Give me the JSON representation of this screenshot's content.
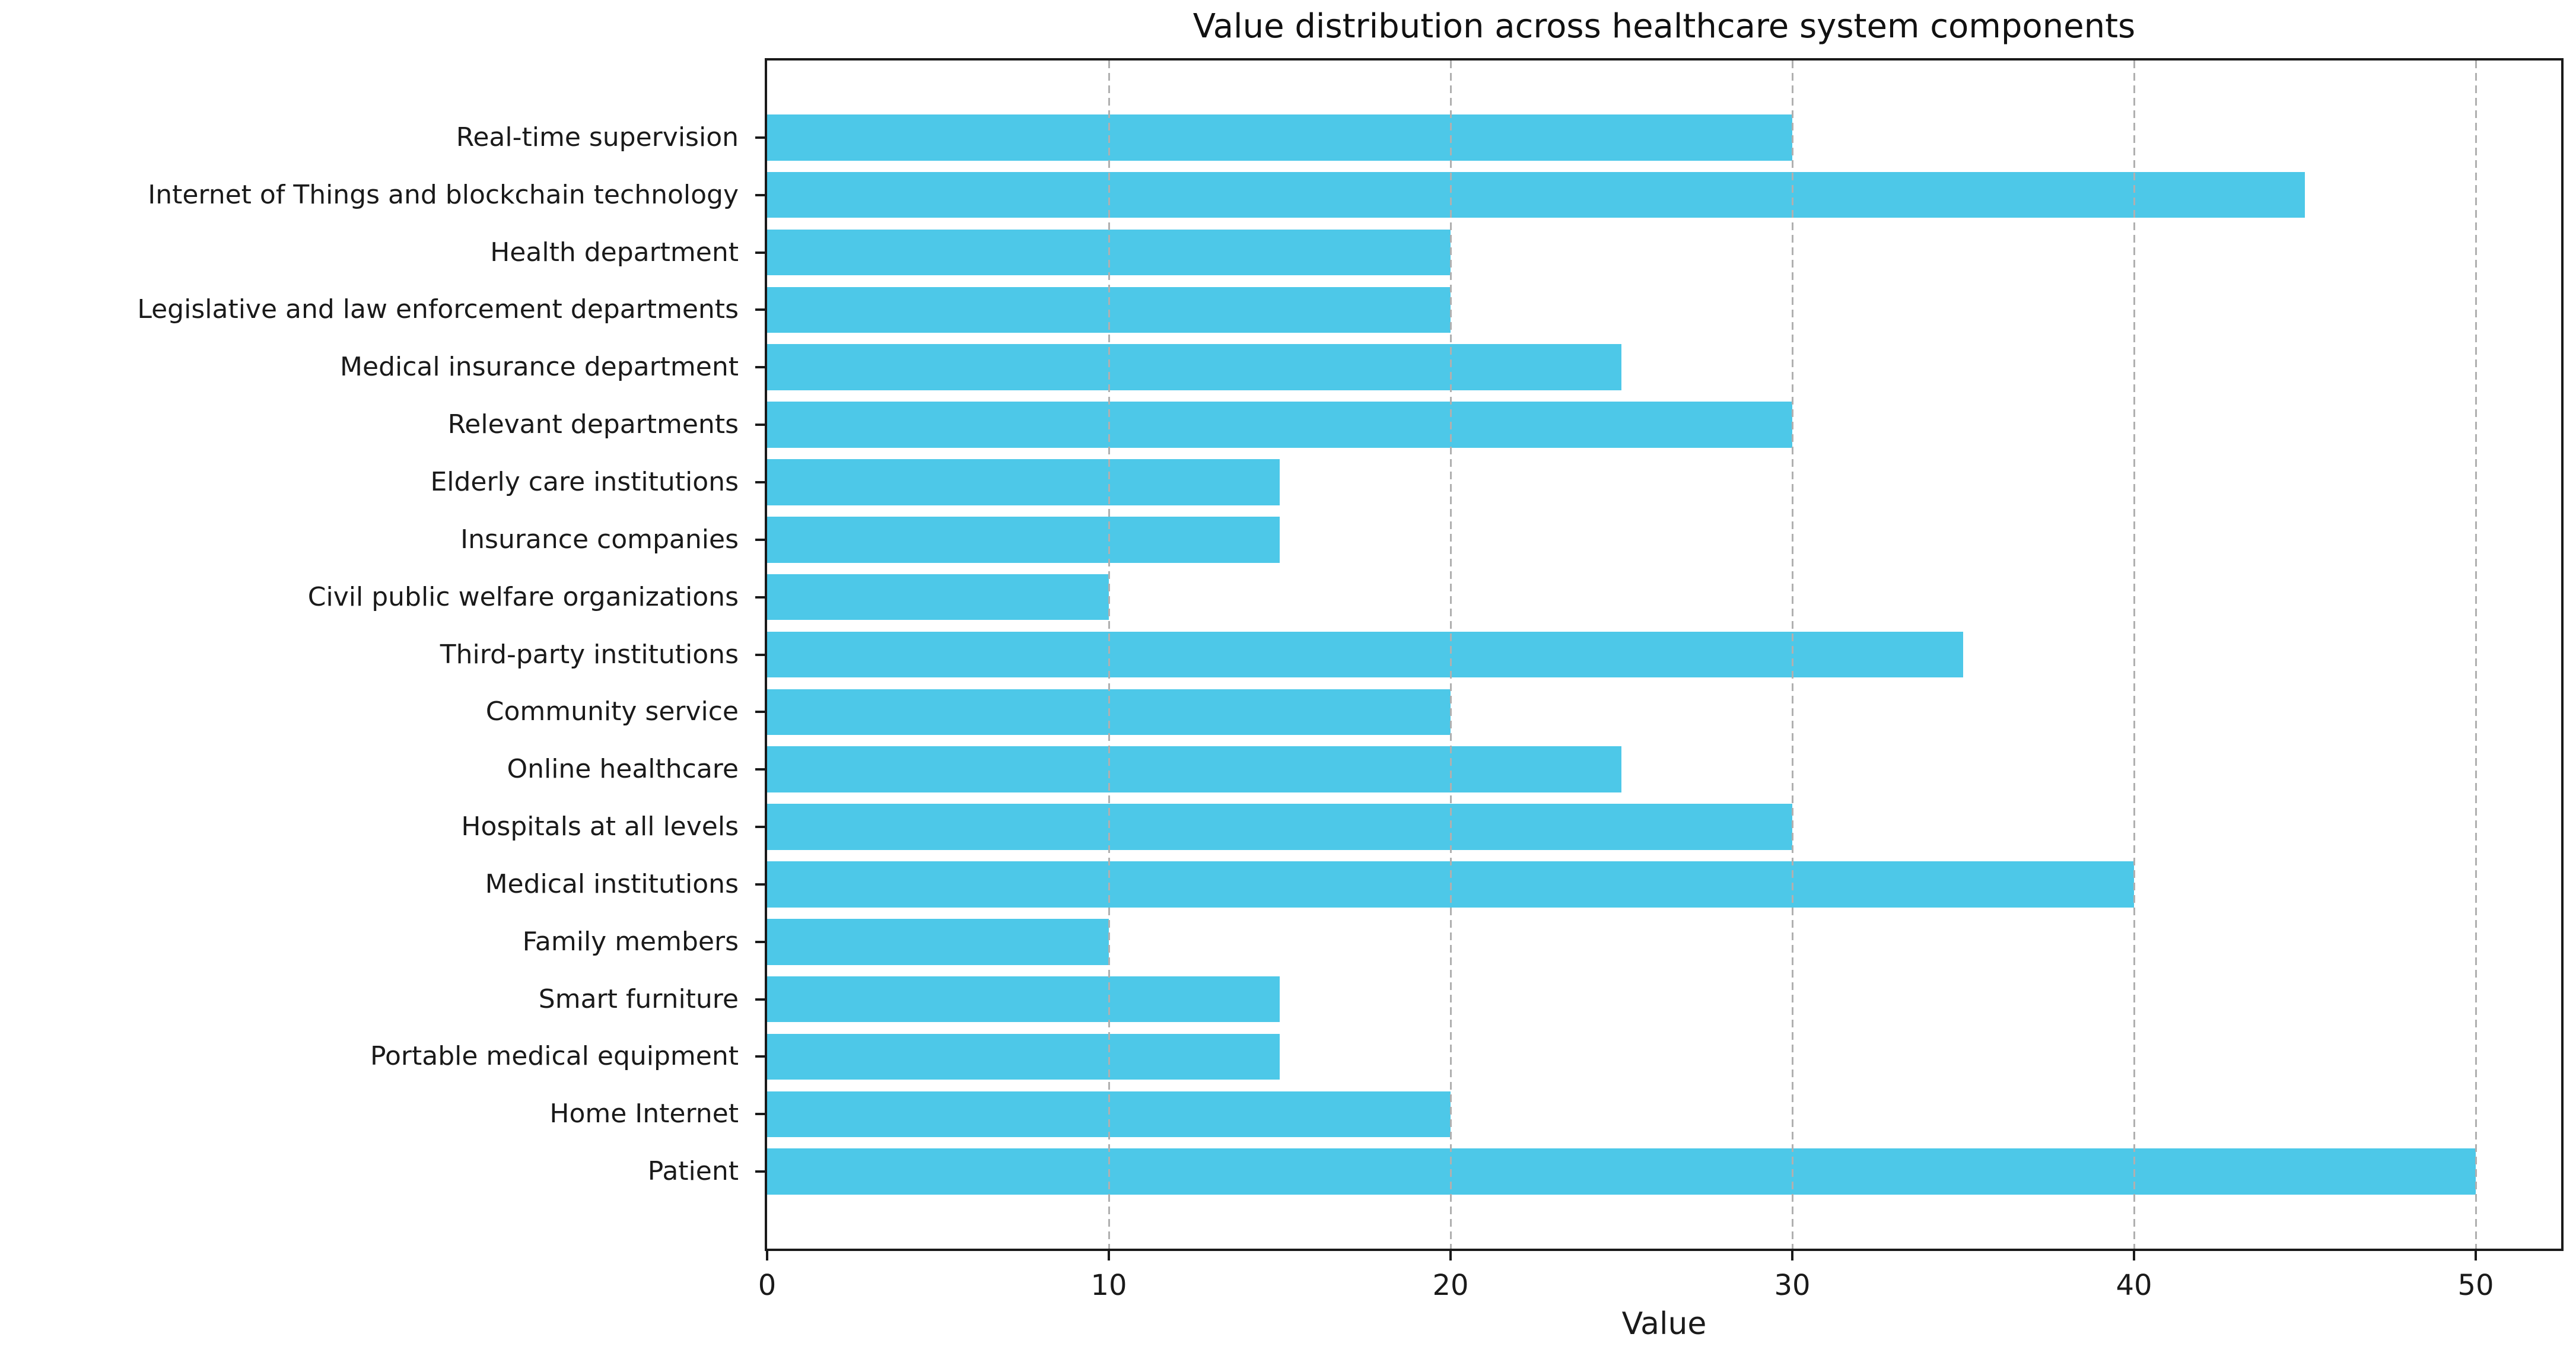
{
  "chart_data": {
    "type": "bar",
    "orientation": "horizontal",
    "title": "Value distribution across healthcare system components",
    "xlabel": "Value",
    "categories": [
      "Real-time supervision",
      "Internet of Things and blockchain technology",
      "Health department",
      "Legislative and law enforcement departments",
      "Medical insurance department",
      "Relevant departments",
      "Elderly care institutions",
      "Insurance companies",
      "Civil public welfare organizations",
      "Third-party institutions",
      "Community service",
      "Online healthcare",
      "Hospitals at all levels",
      "Medical institutions",
      "Family members",
      "Smart furniture",
      "Portable medical equipment",
      "Home Internet",
      "Patient"
    ],
    "values": [
      30,
      45,
      20,
      20,
      25,
      30,
      15,
      15,
      10,
      35,
      20,
      25,
      30,
      40,
      10,
      15,
      15,
      20,
      50
    ],
    "xticks": [
      0,
      10,
      20,
      30,
      40,
      50
    ],
    "xlim": [
      0,
      52.5
    ],
    "bar_color": "#4dc8e8",
    "grid": "vertical-dashed",
    "grid_color": "#b0b0b0",
    "legend_position": "none"
  }
}
